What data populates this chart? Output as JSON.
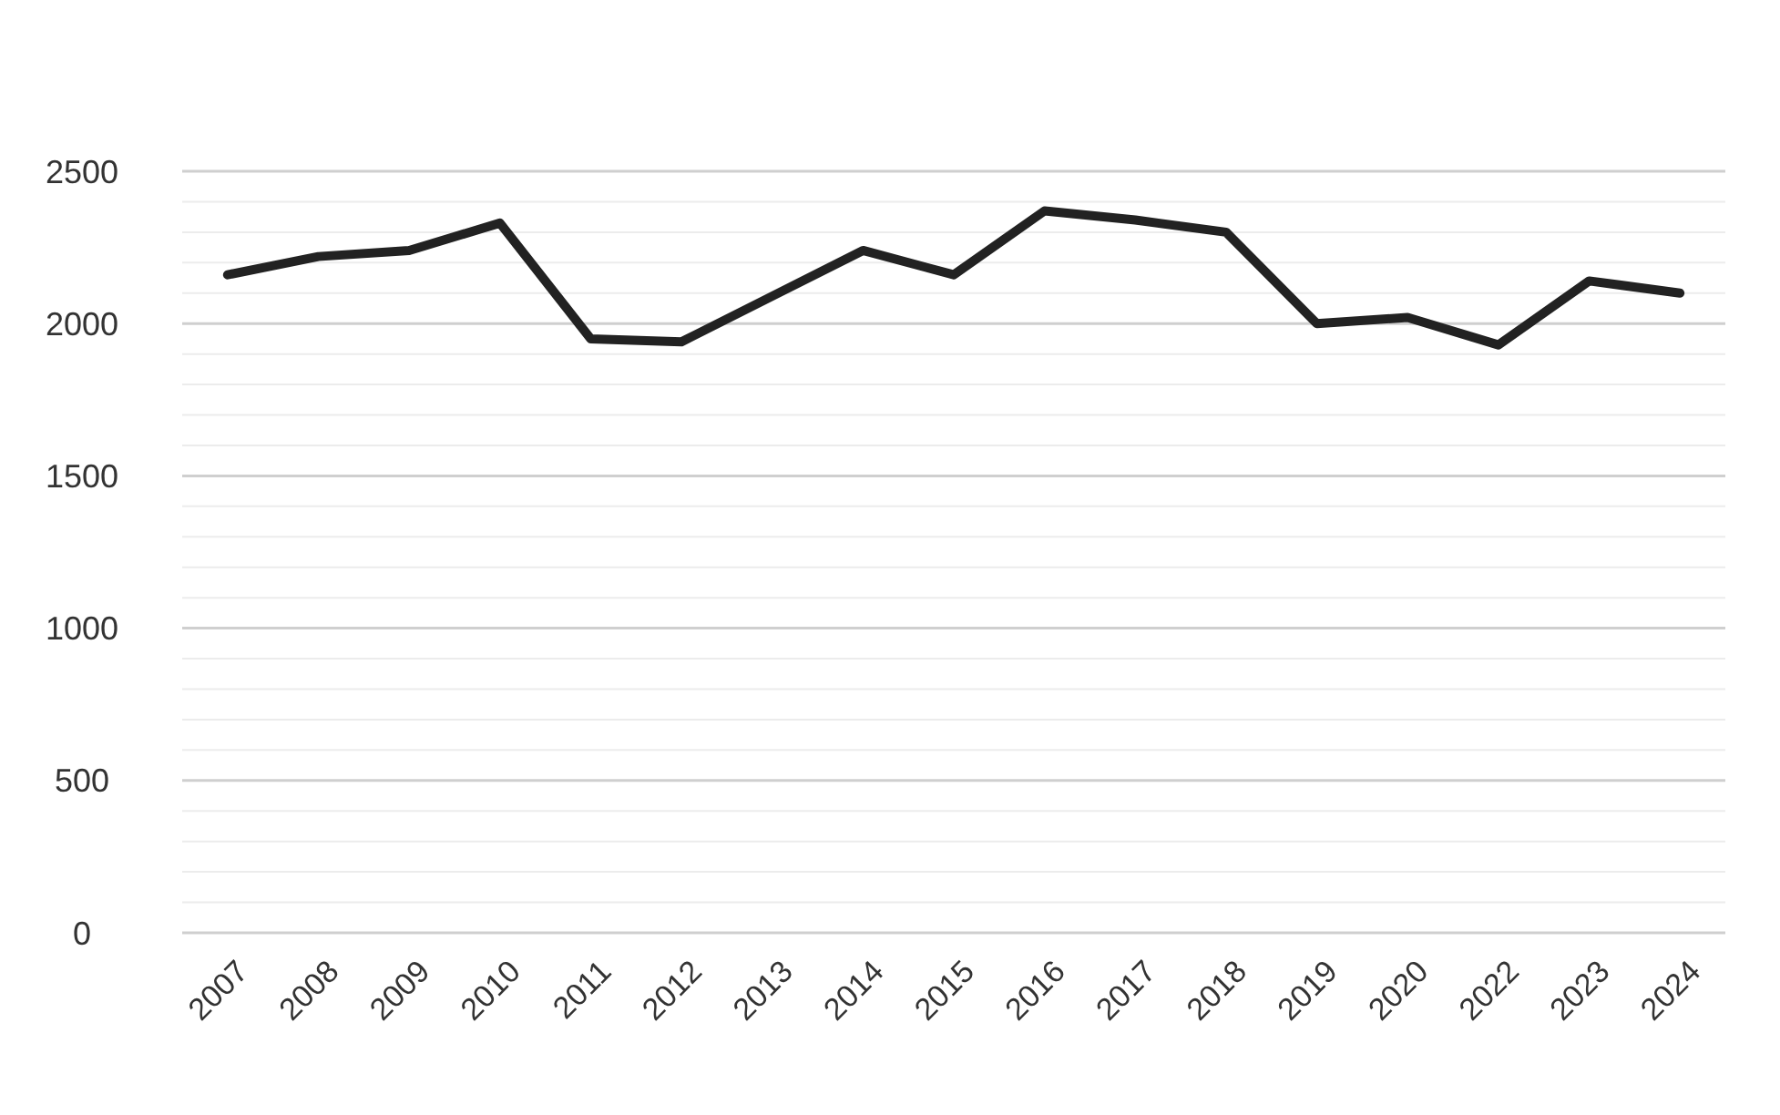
{
  "chart_data": {
    "type": "line",
    "categories": [
      "2007",
      "2008",
      "2009",
      "2010",
      "2011",
      "2012",
      "2013",
      "2014",
      "2015",
      "2016",
      "2017",
      "2018",
      "2019",
      "2020",
      "2022",
      "2023",
      "2024"
    ],
    "series": [
      {
        "color": "#222222",
        "values": [
          2160,
          2220,
          2240,
          2330,
          1950,
          1940,
          2090,
          2240,
          2160,
          2370,
          2340,
          2300,
          2000,
          2020,
          1930,
          2140,
          2100
        ]
      }
    ],
    "ylim": [
      0,
      2500
    ],
    "yticks": [
      0,
      {
        "value": 100,
        "label": null
      },
      {
        "value": 200,
        "label": null
      },
      {
        "value": 300,
        "label": null
      },
      {
        "value": 400,
        "label": null
      },
      500,
      {
        "value": 600,
        "label": null
      },
      {
        "value": 700,
        "label": null
      },
      {
        "value": 800,
        "label": null
      },
      {
        "value": 900,
        "label": null
      },
      1000,
      {
        "value": 1100,
        "label": null
      },
      {
        "value": 1200,
        "label": null
      },
      {
        "value": 1300,
        "label": null
      },
      {
        "value": 1400,
        "label": null
      },
      1500,
      {
        "value": 1600,
        "label": null
      },
      {
        "value": 1700,
        "label": null
      },
      {
        "value": 1800,
        "label": null
      },
      {
        "value": 1900,
        "label": null
      },
      2000,
      {
        "value": 2100,
        "label": null
      },
      {
        "value": 2200,
        "label": null
      },
      {
        "value": 2300,
        "label": null
      },
      {
        "value": 2400,
        "label": null
      },
      2500
    ],
    "grid": "y",
    "marker": "none",
    "line_style": "solid"
  }
}
